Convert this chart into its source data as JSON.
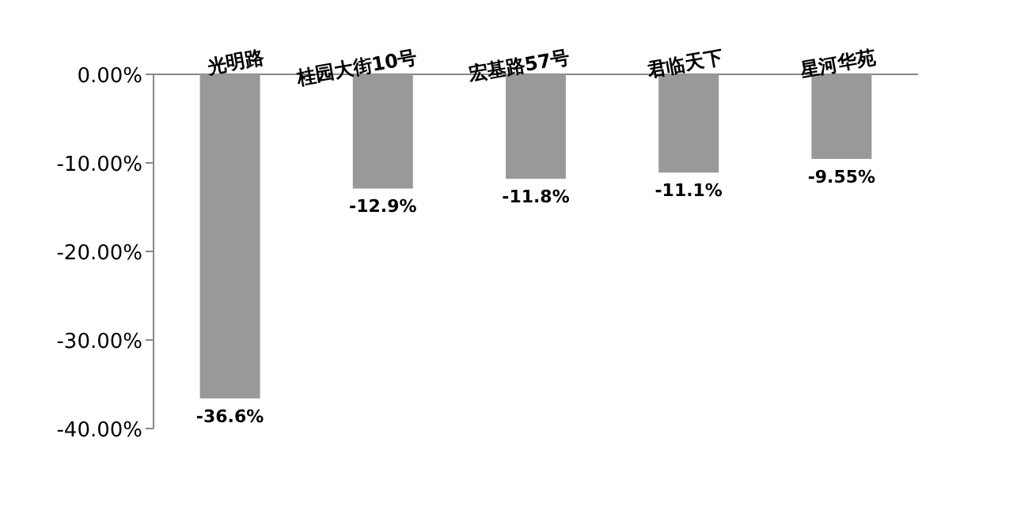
{
  "chart_data": {
    "type": "bar",
    "categories": [
      "光明路",
      "桂园大街10号",
      "宏基路57号",
      "君临天下",
      "星河华苑"
    ],
    "values": [
      -36.6,
      -12.9,
      -11.8,
      -11.1,
      -9.55
    ],
    "value_labels": [
      "-36.6%",
      "-12.9%",
      "-11.8%",
      "-11.1%",
      "-9.55%"
    ],
    "color": "#999999",
    "ylim": [
      -40,
      0
    ],
    "yticks": [
      {
        "value": 0,
        "label": "0.00%"
      },
      {
        "value": -10,
        "label": "-10.00%"
      },
      {
        "value": -20,
        "label": "-20.00%"
      },
      {
        "value": -30,
        "label": "-30.00%"
      },
      {
        "value": -40,
        "label": "-40.00%"
      }
    ]
  }
}
